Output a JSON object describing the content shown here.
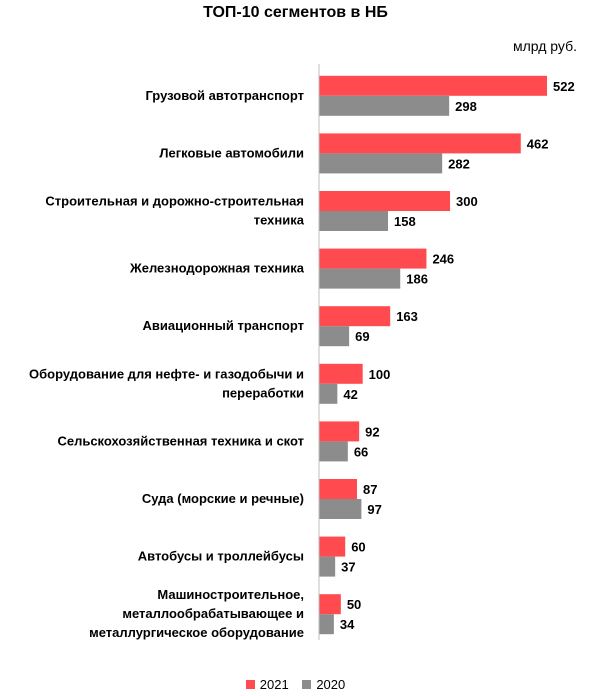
{
  "chart_data": {
    "type": "bar",
    "orientation": "horizontal",
    "title": "ТОП-10 сегментов в НБ",
    "unit": "млрд руб.",
    "categories": [
      [
        "Грузовой автотранспорт"
      ],
      [
        "Легковые автомобили"
      ],
      [
        "Строительная и дорожно-строительная",
        "техника"
      ],
      [
        "Железнодорожная техника"
      ],
      [
        "Авиационный транспорт"
      ],
      [
        "Оборудование для нефте- и газодобычи и",
        "переработки"
      ],
      [
        "Сельскохозяйственная техника и скот"
      ],
      [
        "Суда (морские и речные)"
      ],
      [
        "Автобусы и троллейбусы"
      ],
      [
        "Машиностроительное,",
        "металлообрабатывающее и",
        "металлургическое оборудование"
      ]
    ],
    "series": [
      {
        "name": "2021",
        "color": "#FF4B4F",
        "values": [
          522,
          462,
          300,
          246,
          163,
          100,
          92,
          87,
          60,
          50
        ]
      },
      {
        "name": "2020",
        "color": "#8C8C8C",
        "values": [
          298,
          282,
          158,
          186,
          69,
          42,
          66,
          97,
          37,
          34
        ]
      }
    ],
    "axis_color": "#BFBFBF",
    "legend_position": "bottom",
    "grid": false,
    "xlim": [
      0,
      522
    ]
  }
}
